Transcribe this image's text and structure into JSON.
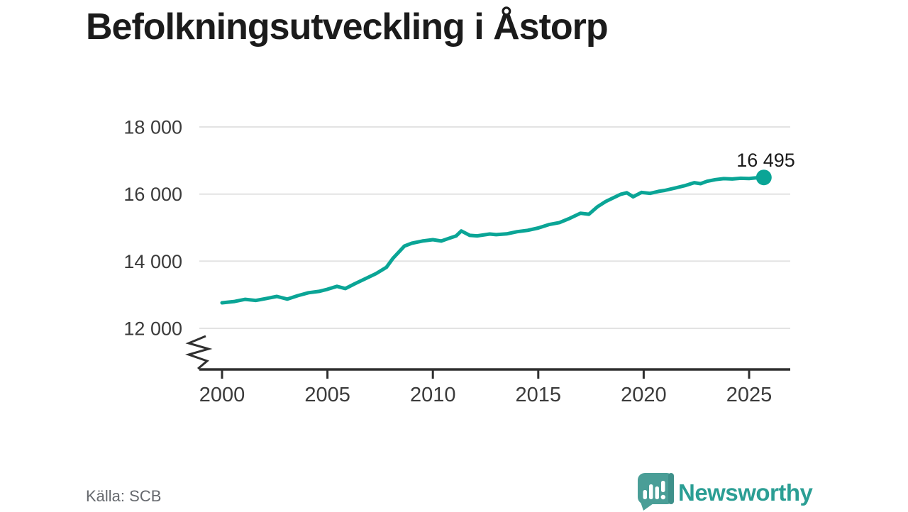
{
  "title": "Befolkningsutveckling i Åstorp",
  "source": "Källa: SCB",
  "branding": {
    "wordmark": "Newsworthy"
  },
  "colors": {
    "line": "#0aa596",
    "grid": "#e3e3e3",
    "axis": "#2f2f2f",
    "tick_text": "#3b3b3b",
    "title_text": "#1b1b1b",
    "source_text": "#65686d",
    "logo_teal": "#4a9e97",
    "logo_teal_dark": "#3e908a",
    "logo_text_teal": "#2b9e94"
  },
  "chart_data": {
    "type": "line",
    "title": "Befolkningsutveckling i Åstorp",
    "xlabel": "",
    "ylabel": "",
    "grid": "horizontal",
    "legend": "none",
    "x_axis": {
      "ticks": [
        2000,
        2005,
        2010,
        2015,
        2020,
        2025
      ],
      "range_years": [
        1999,
        2027
      ]
    },
    "y_axis": {
      "ticks": [
        18000,
        16000,
        14000,
        12000
      ],
      "tick_labels": [
        "18 000",
        "16 000",
        "14 000",
        "12 000"
      ],
      "display_range": [
        11500,
        18000
      ],
      "axis_break": true
    },
    "series": [
      {
        "points": [
          [
            2000.0,
            12760
          ],
          [
            2000.6,
            12800
          ],
          [
            2001.1,
            12865
          ],
          [
            2001.6,
            12830
          ],
          [
            2002.1,
            12890
          ],
          [
            2002.6,
            12950
          ],
          [
            2003.1,
            12870
          ],
          [
            2003.6,
            12975
          ],
          [
            2004.1,
            13060
          ],
          [
            2004.6,
            13100
          ],
          [
            2005.0,
            13165
          ],
          [
            2005.45,
            13250
          ],
          [
            2005.85,
            13185
          ],
          [
            2006.3,
            13330
          ],
          [
            2006.8,
            13480
          ],
          [
            2007.3,
            13630
          ],
          [
            2007.8,
            13820
          ],
          [
            2008.1,
            14080
          ],
          [
            2008.65,
            14450
          ],
          [
            2009.0,
            14535
          ],
          [
            2009.5,
            14600
          ],
          [
            2010.0,
            14640
          ],
          [
            2010.4,
            14600
          ],
          [
            2010.8,
            14690
          ],
          [
            2011.1,
            14750
          ],
          [
            2011.35,
            14900
          ],
          [
            2011.75,
            14770
          ],
          [
            2012.1,
            14755
          ],
          [
            2012.7,
            14810
          ],
          [
            2013.0,
            14790
          ],
          [
            2013.5,
            14815
          ],
          [
            2014.0,
            14880
          ],
          [
            2014.5,
            14920
          ],
          [
            2015.0,
            14990
          ],
          [
            2015.5,
            15090
          ],
          [
            2016.0,
            15150
          ],
          [
            2016.5,
            15280
          ],
          [
            2017.0,
            15430
          ],
          [
            2017.4,
            15400
          ],
          [
            2017.8,
            15620
          ],
          [
            2018.2,
            15780
          ],
          [
            2018.6,
            15900
          ],
          [
            2018.9,
            15990
          ],
          [
            2019.2,
            16040
          ],
          [
            2019.5,
            15920
          ],
          [
            2019.9,
            16050
          ],
          [
            2020.3,
            16020
          ],
          [
            2020.7,
            16080
          ],
          [
            2021.0,
            16110
          ],
          [
            2021.5,
            16180
          ],
          [
            2022.0,
            16260
          ],
          [
            2022.4,
            16340
          ],
          [
            2022.7,
            16310
          ],
          [
            2023.0,
            16380
          ],
          [
            2023.4,
            16430
          ],
          [
            2023.8,
            16460
          ],
          [
            2024.2,
            16450
          ],
          [
            2024.6,
            16470
          ],
          [
            2025.0,
            16465
          ],
          [
            2025.3,
            16480
          ],
          [
            2025.7,
            16495
          ]
        ]
      }
    ],
    "end_point": {
      "year": 2025.7,
      "value": 16495,
      "label": "16 495"
    }
  }
}
